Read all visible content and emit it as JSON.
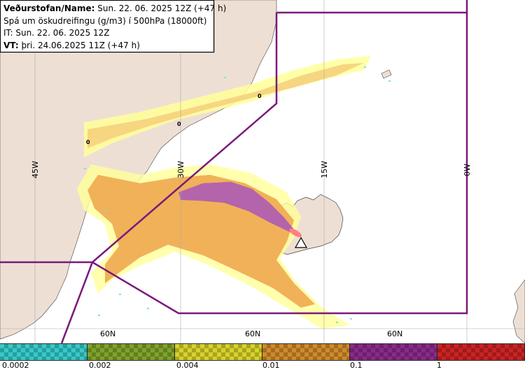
{
  "header": {
    "line1_bold": "Veðurstofan/Name:",
    "line1_rest": " Sun. 22. 06. 2025 12Z (+47 h)",
    "line2": "Spá um öskudreifingu (g/m3) í 500hPa (18000ft)",
    "line3": "IT: Sun. 22. 06. 2025 12Z",
    "line4_bold": "VT:",
    "line4_rest": " þri. 24.06.2025 11Z (+47 h)"
  },
  "grid_labels": {
    "lon_45w": "45W",
    "lon_30w": "30W",
    "lon_15w": "15W",
    "lon_0w": "0W",
    "lat_60n_a": "60N",
    "lat_60n_b": "60N",
    "lat_60n_c": "60N"
  },
  "contour_labels": [
    "0",
    "0",
    "0"
  ],
  "legend": {
    "swatches": [
      {
        "name": "cyan",
        "color": "#36c9c9"
      },
      {
        "name": "olive",
        "color": "#7fa32a"
      },
      {
        "name": "yellow",
        "color": "#d7d22a"
      },
      {
        "name": "orange",
        "color": "#d08a2a"
      },
      {
        "name": "purple",
        "color": "#8a2a8a"
      },
      {
        "name": "red",
        "color": "#cc2222"
      }
    ],
    "labels": [
      "0.0002",
      "0.002",
      "0.004",
      "0.01",
      "0.1",
      "1"
    ]
  },
  "colors": {
    "sea": "#ffffff",
    "land": "#eedfd4",
    "boundary": "#7a1a7a",
    "ash_light": "#ffff99",
    "ash_yellow": "#f5cf7a",
    "ash_orange": "#f0a850",
    "ash_purple": "#b060b0",
    "ash_red": "#ff8080",
    "trace": "#7fe0e0"
  }
}
